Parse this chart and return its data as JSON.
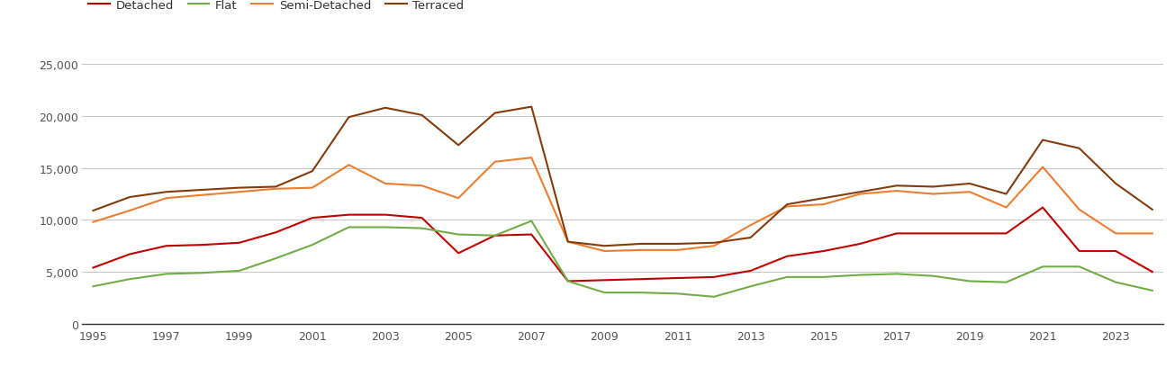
{
  "years": [
    1995,
    1996,
    1997,
    1998,
    1999,
    2000,
    2001,
    2002,
    2003,
    2004,
    2005,
    2006,
    2007,
    2008,
    2009,
    2010,
    2011,
    2012,
    2013,
    2014,
    2015,
    2016,
    2017,
    2018,
    2019,
    2020,
    2021,
    2022,
    2023,
    2024
  ],
  "detached": [
    5400,
    6700,
    7500,
    7600,
    7800,
    8800,
    10200,
    10500,
    10500,
    10200,
    6800,
    8500,
    8600,
    4100,
    4200,
    4300,
    4400,
    4500,
    5100,
    6500,
    7000,
    7700,
    8700,
    8700,
    8700,
    8700,
    11200,
    7000,
    7000,
    5000
  ],
  "flat": [
    3600,
    4300,
    4800,
    4900,
    5100,
    6300,
    7600,
    9300,
    9300,
    9200,
    8600,
    8500,
    9900,
    4100,
    3000,
    3000,
    2900,
    2600,
    3600,
    4500,
    4500,
    4700,
    4800,
    4600,
    4100,
    4000,
    5500,
    5500,
    4000,
    3200
  ],
  "semi_detached": [
    9800,
    10900,
    12100,
    12400,
    12700,
    13000,
    13100,
    15300,
    13500,
    13300,
    12100,
    15600,
    16000,
    7900,
    7000,
    7100,
    7100,
    7500,
    9500,
    11300,
    11500,
    12500,
    12800,
    12500,
    12700,
    11200,
    15100,
    11000,
    8700,
    8700
  ],
  "terraced": [
    10900,
    12200,
    12700,
    12900,
    13100,
    13200,
    14700,
    19900,
    20800,
    20100,
    17200,
    20300,
    20900,
    7900,
    7500,
    7700,
    7700,
    7800,
    8300,
    11500,
    12100,
    12700,
    13300,
    13200,
    13500,
    12500,
    17700,
    16900,
    13500,
    11000
  ],
  "colors": {
    "detached": "#c00000",
    "flat": "#70ad47",
    "semi_detached": "#ed7d31",
    "terraced": "#843c0c"
  },
  "ylim": [
    0,
    27000
  ],
  "yticks": [
    0,
    5000,
    10000,
    15000,
    20000,
    25000
  ],
  "xtick_years": [
    1995,
    1997,
    1999,
    2001,
    2003,
    2005,
    2007,
    2009,
    2011,
    2013,
    2015,
    2017,
    2019,
    2021,
    2023
  ],
  "line_width": 1.5,
  "background_color": "#ffffff",
  "grid_color": "#c8c8c8"
}
